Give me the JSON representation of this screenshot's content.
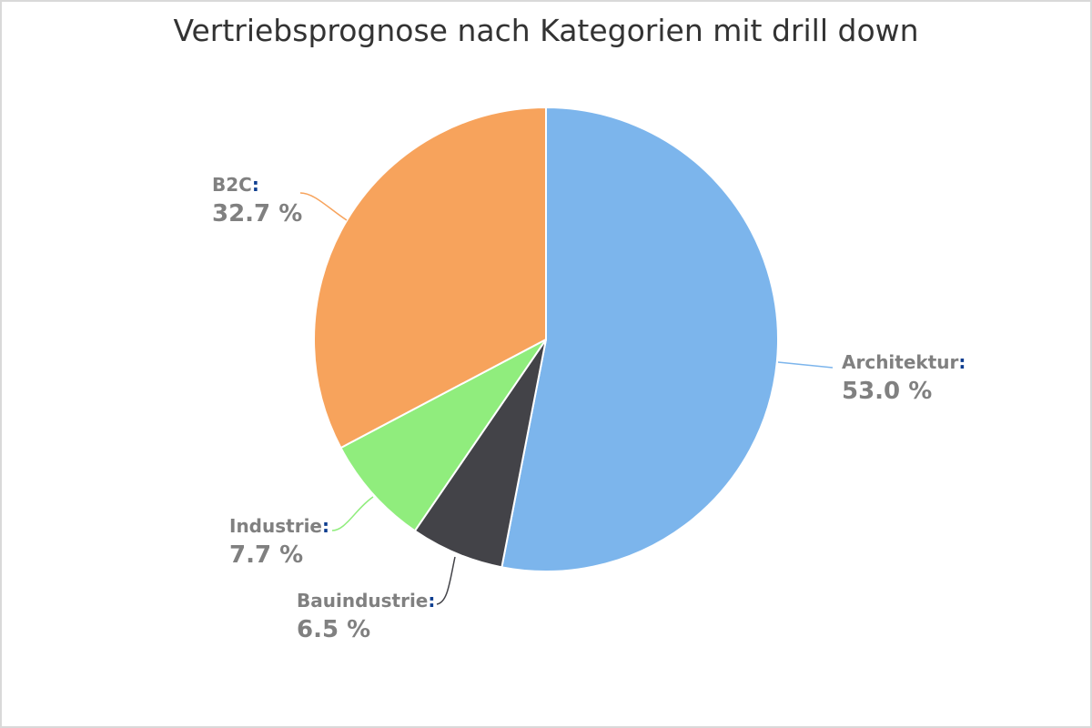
{
  "chart_data": {
    "type": "pie",
    "title": "Vertriebsprognose nach Kategorien mit drill down",
    "unit": "%",
    "slices": [
      {
        "name": "Architektur",
        "value": 53.0,
        "label": "53.0 %",
        "color": "#7cb5ec"
      },
      {
        "name": "Bauindustrie",
        "value": 6.5,
        "label": "6.5 %",
        "color": "#434348"
      },
      {
        "name": "Industrie",
        "value": 7.7,
        "label": "7.7 %",
        "color": "#90ed7d"
      },
      {
        "name": "B2C",
        "value": 32.7,
        "label": "32.7 %",
        "color": "#f7a35c"
      }
    ],
    "start_angle": "top, clockwise",
    "data_label_colon_color": "#0d3d8f"
  }
}
